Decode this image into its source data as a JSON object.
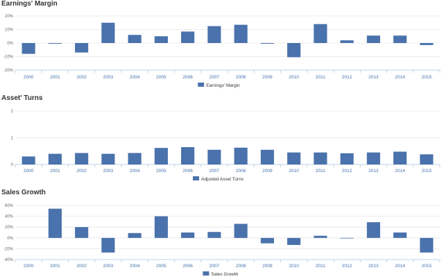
{
  "chart_data": [
    {
      "type": "bar",
      "title": "Earnings' Margin",
      "categories": [
        "2000",
        "2001",
        "2002",
        "2003",
        "2004",
        "2005",
        "2006",
        "2007",
        "2008",
        "2009",
        "2010",
        "2011",
        "2012",
        "2013",
        "2014",
        "2015"
      ],
      "series": [
        {
          "name": "Earnings' Margin",
          "values": [
            -8,
            -0.5,
            -7,
            15,
            6,
            5,
            8.5,
            12.5,
            13.5,
            -0.5,
            -10.5,
            14,
            2,
            5.5,
            5.5,
            -1.5
          ]
        }
      ],
      "ylim": [
        -20,
        20
      ],
      "yticks": [
        -20,
        -10,
        0,
        10,
        20
      ],
      "ytick_labels": [
        "-20%",
        "-10%",
        "0%",
        "10%",
        "20%"
      ],
      "grid": true,
      "legend_position": "bottom-center",
      "color": "#4a72ac"
    },
    {
      "type": "bar",
      "title": "Asset' Turns",
      "categories": [
        "2000",
        "2001",
        "2002",
        "2003",
        "2004",
        "2005",
        "2006",
        "2007",
        "2008",
        "2009",
        "2010",
        "2011",
        "2012",
        "2013",
        "2014",
        "2015"
      ],
      "series": [
        {
          "name": "Adjusted Asset Turns",
          "values": [
            0.3,
            0.4,
            0.43,
            0.4,
            0.43,
            0.62,
            0.65,
            0.55,
            0.63,
            0.55,
            0.45,
            0.45,
            0.42,
            0.45,
            0.48,
            0.38
          ]
        }
      ],
      "ylim": [
        0,
        2
      ],
      "yticks": [
        0,
        1,
        2
      ],
      "ytick_labels": [
        "0",
        "1",
        "2"
      ],
      "grid": true,
      "legend_position": "bottom-center",
      "color": "#4a72ac"
    },
    {
      "type": "bar",
      "title": "Sales Growth",
      "categories": [
        "2000",
        "2001",
        "2002",
        "2003",
        "2004",
        "2005",
        "2006",
        "2007",
        "2008",
        "2009",
        "2010",
        "2011",
        "2012",
        "2013",
        "2014",
        "2015"
      ],
      "series": [
        {
          "name": "Sales Growth",
          "values": [
            0,
            54,
            20,
            -27,
            9,
            40,
            10,
            11,
            26,
            -10,
            -13,
            4,
            -1,
            29,
            10,
            -27
          ]
        }
      ],
      "ylim": [
        -40,
        60
      ],
      "yticks": [
        -40,
        -20,
        0,
        20,
        40,
        60
      ],
      "ytick_labels": [
        "-40%",
        "-20%",
        "0%",
        "20%",
        "40%",
        "60%"
      ],
      "grid": true,
      "legend_position": "bottom-center",
      "color": "#4a72ac"
    }
  ]
}
